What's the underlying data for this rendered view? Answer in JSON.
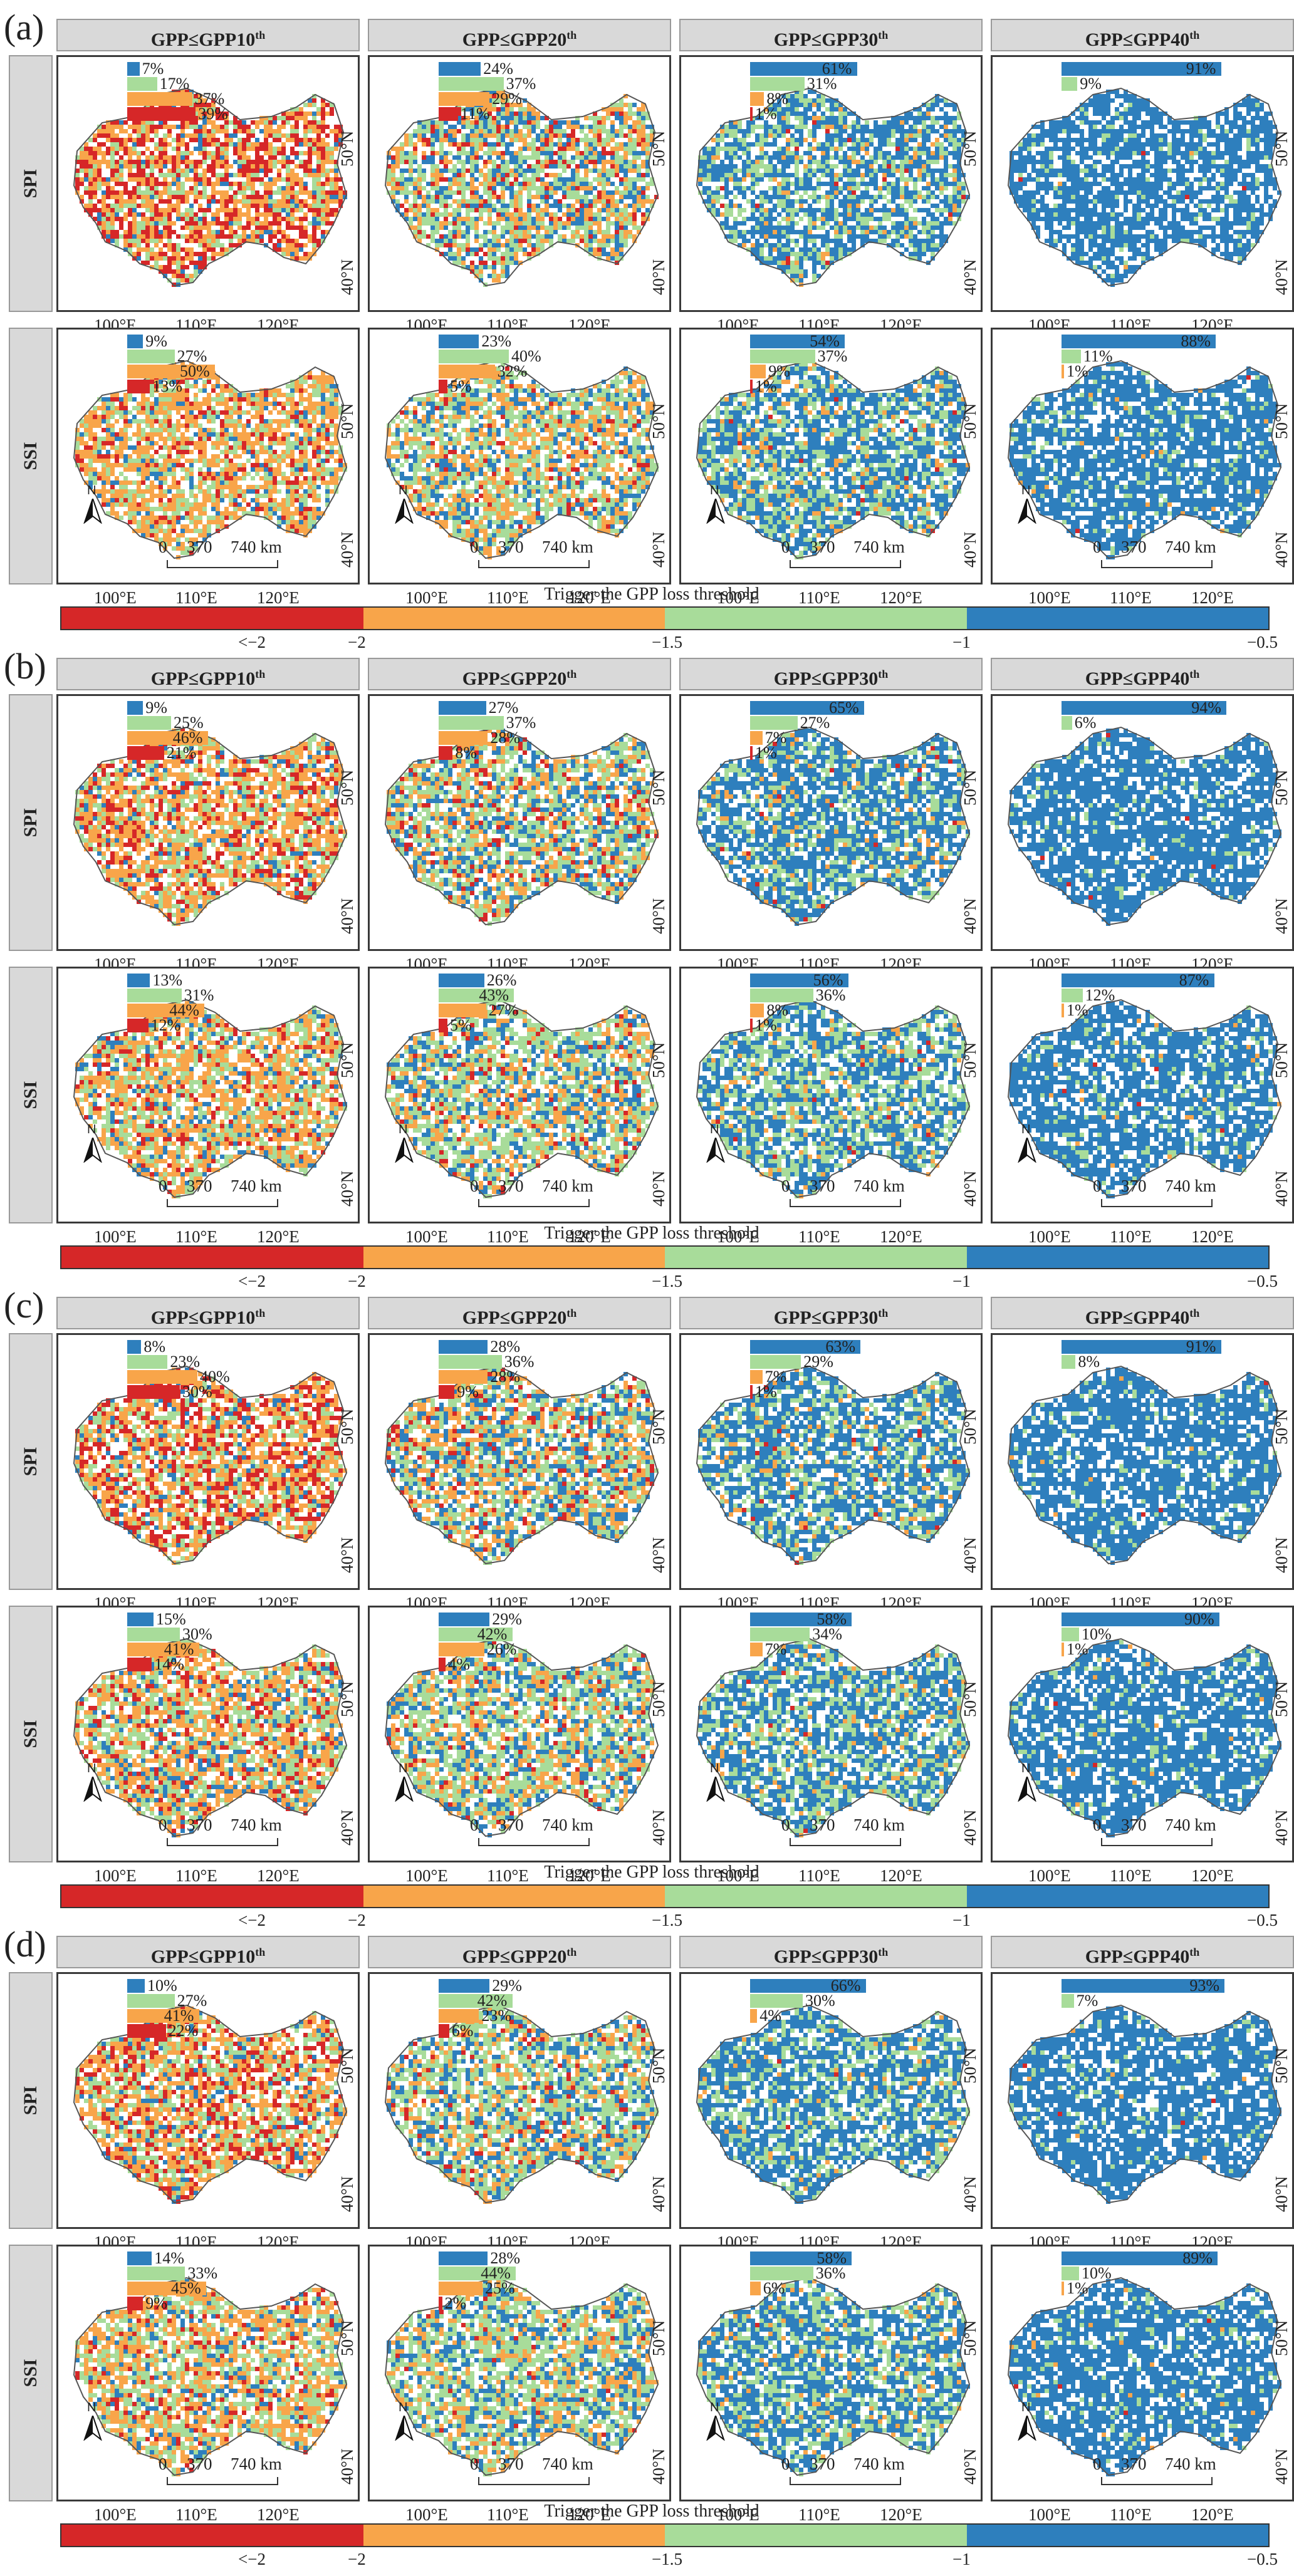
{
  "colors": {
    "c1": "#d62728",
    "c2": "#f8a54a",
    "c3": "#a8dc9a",
    "c4": "#2e7fbd"
  },
  "column_headers": [
    "GPP≤GPP10",
    "GPP≤GPP20",
    "GPP≤GPP30",
    "GPP≤GPP40"
  ],
  "header_sup": "th",
  "row_labels": [
    "SPI",
    "SSI"
  ],
  "lon_ticks": [
    "100°E",
    "110°E",
    "120°E"
  ],
  "lat_ticks": [
    "50°N",
    "40°N"
  ],
  "north_label": "N",
  "scale_bar": {
    "labels": [
      "0",
      "370",
      "740 km"
    ]
  },
  "trigger_label": "Trigger the GPP loss threshold",
  "colorbar": {
    "labels": [
      "<−2",
      "−2",
      "−1.5",
      "−1",
      "−0.5"
    ]
  },
  "sections": [
    {
      "label": "(a)",
      "panels": [
        [
          "7%",
          "17%",
          "37%",
          "39%"
        ],
        [
          "24%",
          "37%",
          "29%",
          "11%"
        ],
        [
          "61%",
          "31%",
          "8%",
          "1%"
        ],
        [
          "91%",
          "9%",
          "",
          ""
        ],
        [
          "9%",
          "27%",
          "50%",
          "13%"
        ],
        [
          "23%",
          "40%",
          "32%",
          "5%"
        ],
        [
          "54%",
          "37%",
          "9%",
          "1%"
        ],
        [
          "88%",
          "11%",
          "1%",
          ""
        ]
      ]
    },
    {
      "label": "(b)",
      "panels": [
        [
          "9%",
          "25%",
          "46%",
          "21%"
        ],
        [
          "27%",
          "37%",
          "28%",
          "8%"
        ],
        [
          "65%",
          "27%",
          "7%",
          "1%"
        ],
        [
          "94%",
          "6%",
          "",
          ""
        ],
        [
          "13%",
          "31%",
          "44%",
          "12%"
        ],
        [
          "26%",
          "43%",
          "27%",
          "5%"
        ],
        [
          "56%",
          "36%",
          "8%",
          "1%"
        ],
        [
          "87%",
          "12%",
          "1%",
          ""
        ]
      ]
    },
    {
      "label": "(c)",
      "panels": [
        [
          "8%",
          "23%",
          "40%",
          "30%"
        ],
        [
          "28%",
          "36%",
          "28%",
          "9%"
        ],
        [
          "63%",
          "29%",
          "7%",
          "1%"
        ],
        [
          "91%",
          "8%",
          "",
          ""
        ],
        [
          "15%",
          "30%",
          "41%",
          "14%"
        ],
        [
          "29%",
          "42%",
          "26%",
          "4%"
        ],
        [
          "58%",
          "34%",
          "7%",
          ""
        ],
        [
          "90%",
          "10%",
          "1%",
          ""
        ]
      ]
    },
    {
      "label": "(d)",
      "panels": [
        [
          "10%",
          "27%",
          "41%",
          "22%"
        ],
        [
          "29%",
          "42%",
          "23%",
          "6%"
        ],
        [
          "66%",
          "30%",
          "4%",
          ""
        ],
        [
          "93%",
          "7%",
          "",
          ""
        ],
        [
          "14%",
          "33%",
          "45%",
          "9%"
        ],
        [
          "28%",
          "44%",
          "25%",
          "2%"
        ],
        [
          "58%",
          "36%",
          "6%",
          ""
        ],
        [
          "89%",
          "10%",
          "1%",
          ""
        ]
      ]
    }
  ]
}
